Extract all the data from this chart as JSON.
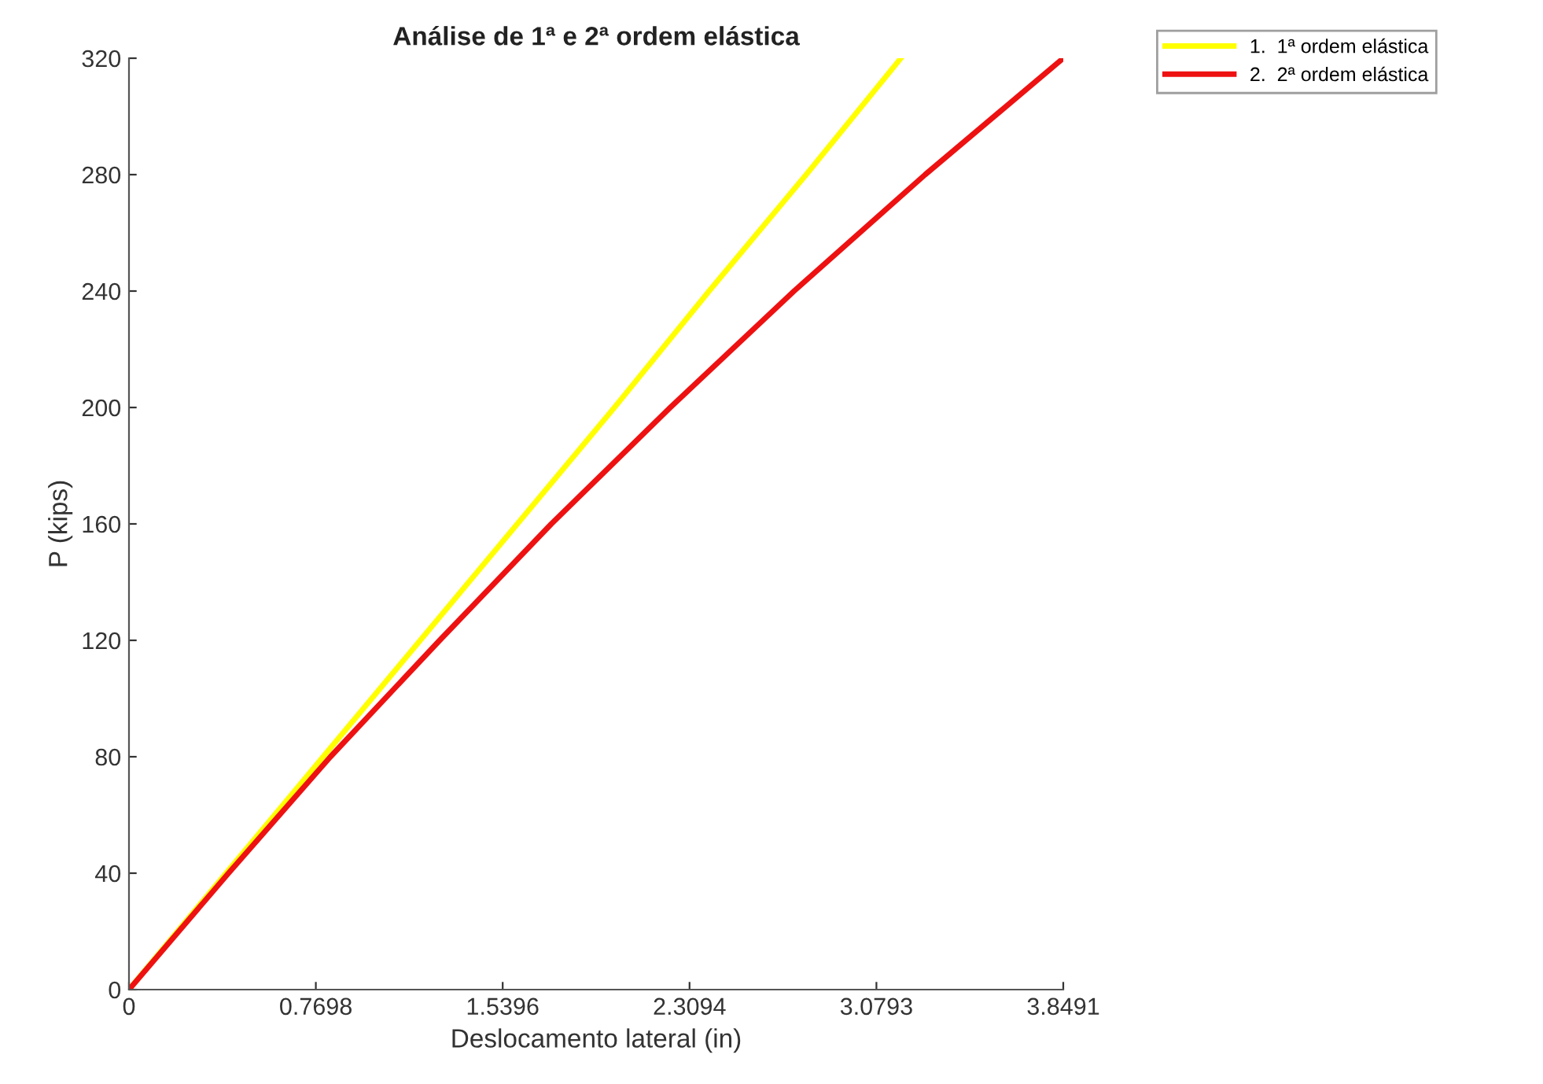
{
  "chart_data": {
    "type": "line",
    "title": "Análise de 1ª e 2ª ordem elástica",
    "xlabel": "Deslocamento lateral (in)",
    "ylabel": "P (kips)",
    "xlim": [
      0,
      3.8491
    ],
    "xticks": [
      0,
      0.7698,
      1.5396,
      2.3094,
      3.0793,
      3.8491
    ],
    "ylim": [
      0,
      320
    ],
    "yticks": [
      0,
      40,
      80,
      120,
      160,
      200,
      240,
      280,
      320
    ],
    "grid": false,
    "legend": "top right",
    "marker": "none",
    "line_style": "solid",
    "series": [
      {
        "name": "1.  1ª ordem elástica",
        "color": "#ffff00",
        "x": [
          0,
          0.4,
          0.8,
          1.2,
          1.6,
          2.0,
          2.39,
          2.79,
          3.18
        ],
        "values": [
          0,
          40,
          80,
          120,
          160,
          200,
          240,
          280,
          320
        ]
      },
      {
        "name": "2.  2ª ordem elástica",
        "color": "#ee1111",
        "x": [
          0,
          0.41,
          0.83,
          1.28,
          1.74,
          2.23,
          2.74,
          3.28,
          3.8491
        ],
        "values": [
          0,
          40,
          80,
          120,
          160,
          200,
          240,
          280,
          320
        ]
      }
    ]
  }
}
